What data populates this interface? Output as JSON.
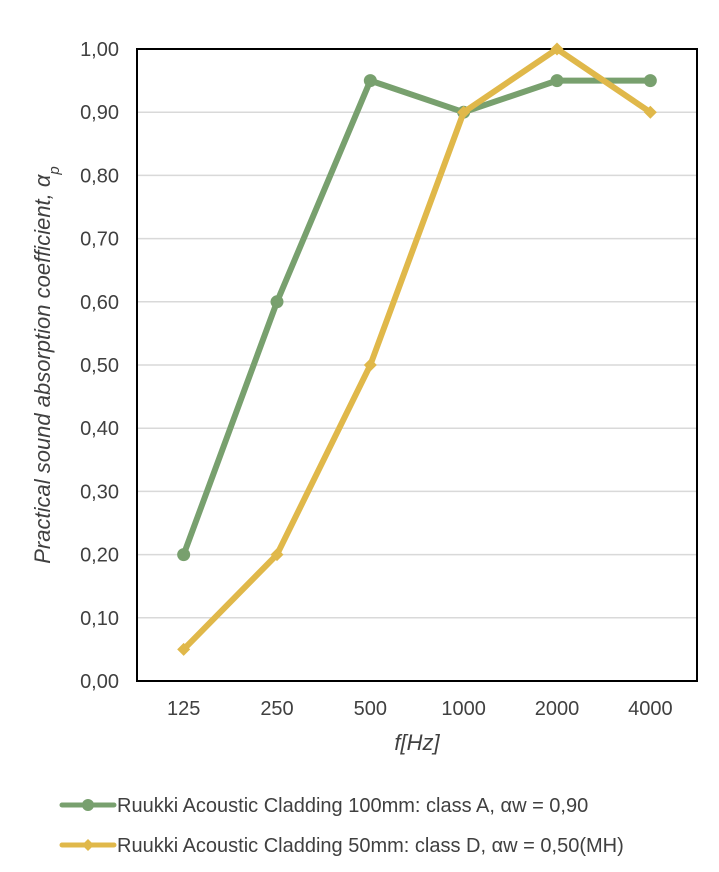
{
  "chart_data": {
    "type": "line",
    "title": "",
    "xlabel": "f[Hz]",
    "ylabel": "Practical sound absorption coefficient, α",
    "ylabel_subscript": "p",
    "categories": [
      "125",
      "250",
      "500",
      "1000",
      "2000",
      "4000"
    ],
    "ylim": [
      0,
      1.0
    ],
    "yticks": [
      "0,00",
      "0,10",
      "0,20",
      "0,30",
      "0,40",
      "0,50",
      "0,60",
      "0,70",
      "0,80",
      "0,90",
      "1,00"
    ],
    "grid": true,
    "legend_position": "bottom",
    "series": [
      {
        "name": "Ruukki Acoustic Cladding 100mm: class A, αw = 0,90",
        "values": [
          0.2,
          0.6,
          0.95,
          0.9,
          0.95,
          0.95
        ],
        "color": "#78A06E",
        "marker": "circle"
      },
      {
        "name": "Ruukki Acoustic Cladding 50mm: class D, αw = 0,50(MH)",
        "values": [
          0.05,
          0.2,
          0.5,
          0.9,
          1.0,
          0.9
        ],
        "color": "#E0B84A",
        "marker": "diamond"
      }
    ]
  }
}
